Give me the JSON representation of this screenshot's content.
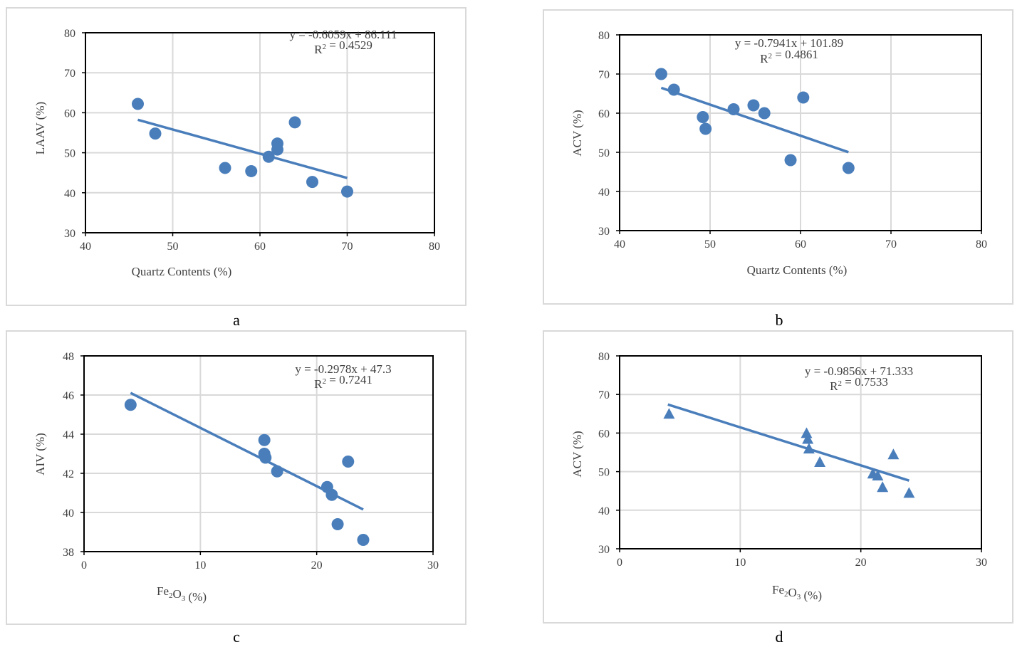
{
  "chart_data": [
    {
      "type": "scatter",
      "panel_label": "a",
      "xlabel": "Quartz Contents (%)",
      "ylabel": "LAAV (%)",
      "xlim": [
        40,
        80
      ],
      "xticks": [
        40,
        50,
        60,
        70,
        80
      ],
      "ylim": [
        30,
        80
      ],
      "yticks": [
        30,
        40,
        50,
        60,
        70,
        80
      ],
      "marker": "circle",
      "points": [
        [
          46,
          62.2
        ],
        [
          48,
          54.8
        ],
        [
          56,
          46.2
        ],
        [
          59,
          45.4
        ],
        [
          61,
          49
        ],
        [
          62,
          50.8
        ],
        [
          62,
          52.3
        ],
        [
          64,
          57.6
        ],
        [
          66,
          42.7
        ],
        [
          70,
          40.3
        ]
      ],
      "trendline": {
        "x": [
          46,
          70
        ],
        "slope": -0.6059,
        "intercept": 86.111
      },
      "equation": "y = -0.6059x + 86.111",
      "r2": "R² = 0.4529",
      "grid": true,
      "color": "#4a7ebb"
    },
    {
      "type": "scatter",
      "panel_label": "b",
      "xlabel": "Quartz Contents (%)",
      "ylabel": "ACV (%)",
      "xlim": [
        40,
        80
      ],
      "xticks": [
        40,
        50,
        60,
        70,
        80
      ],
      "ylim": [
        30,
        80
      ],
      "yticks": [
        30,
        40,
        50,
        60,
        70,
        80
      ],
      "marker": "circle",
      "points": [
        [
          44.6,
          70
        ],
        [
          46,
          66
        ],
        [
          49.2,
          59
        ],
        [
          49.5,
          56
        ],
        [
          52.6,
          61
        ],
        [
          54.8,
          62
        ],
        [
          56,
          60
        ],
        [
          58.9,
          48
        ],
        [
          60.3,
          64
        ],
        [
          65.3,
          46
        ]
      ],
      "trendline": {
        "x": [
          44.6,
          65.3
        ],
        "slope": -0.7941,
        "intercept": 101.89
      },
      "equation": "y = -0.7941x + 101.89",
      "r2": "R² = 0.4861",
      "grid": true,
      "color": "#4a7ebb"
    },
    {
      "type": "scatter",
      "panel_label": "c",
      "xlabel": "Fe₂O₃ (%)",
      "ylabel": "AIV (%)",
      "xlim": [
        0,
        30
      ],
      "xticks": [
        0,
        10,
        20,
        30
      ],
      "ylim": [
        38,
        48
      ],
      "yticks": [
        38,
        40,
        42,
        44,
        46,
        48
      ],
      "marker": "circle",
      "points": [
        [
          4,
          45.5
        ],
        [
          15.5,
          43.7
        ],
        [
          15.5,
          43
        ],
        [
          15.6,
          42.8
        ],
        [
          16.6,
          42.1
        ],
        [
          20.9,
          41.3
        ],
        [
          21.3,
          40.9
        ],
        [
          22.7,
          42.6
        ],
        [
          21.8,
          39.4
        ],
        [
          24,
          38.6
        ]
      ],
      "trendline": {
        "x": [
          4,
          24
        ],
        "slope": -0.2978,
        "intercept": 47.3
      },
      "equation": "y = -0.2978x + 47.3",
      "r2": "R² = 0.7241",
      "grid": true,
      "color": "#4a7ebb"
    },
    {
      "type": "scatter",
      "panel_label": "d",
      "xlabel": "Fe₂O₃ (%)",
      "ylabel": "ACV (%)",
      "xlim": [
        0,
        30
      ],
      "xticks": [
        0,
        10,
        20,
        30
      ],
      "ylim": [
        30,
        80
      ],
      "yticks": [
        30,
        40,
        50,
        60,
        70,
        80
      ],
      "marker": "triangle",
      "points": [
        [
          4.1,
          65
        ],
        [
          15.5,
          60
        ],
        [
          15.6,
          58.5
        ],
        [
          15.7,
          56
        ],
        [
          16.6,
          52.5
        ],
        [
          21,
          49.5
        ],
        [
          21.4,
          49
        ],
        [
          22.7,
          54.5
        ],
        [
          21.8,
          46
        ],
        [
          24,
          44.5
        ]
      ],
      "trendline": {
        "x": [
          4,
          24
        ],
        "slope": -0.9856,
        "intercept": 71.333
      },
      "equation": "y = -0.9856x + 71.333",
      "r2": "R² = 0.7533",
      "grid": true,
      "color": "#4a7ebb"
    }
  ]
}
